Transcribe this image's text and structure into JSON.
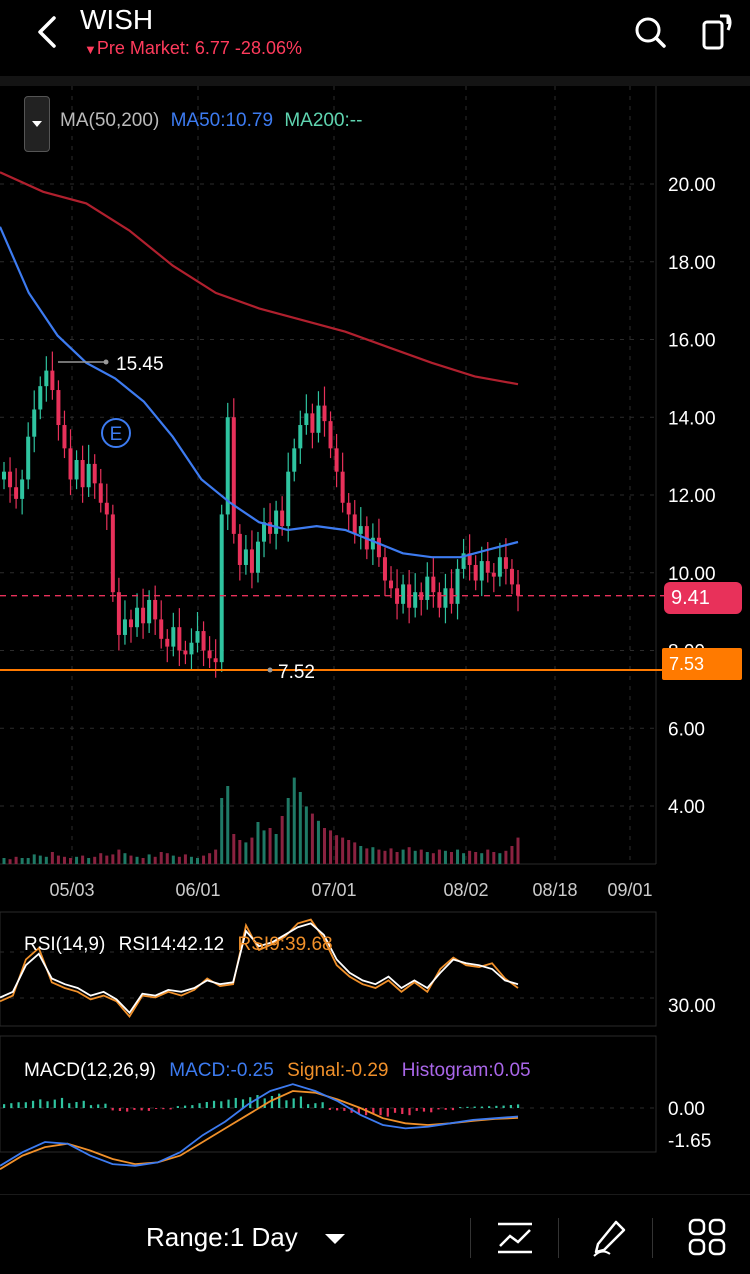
{
  "header": {
    "symbol": "WISH",
    "premarket": "Pre Market: 6.77 -28.06%",
    "colors": {
      "down": "#ff3b5c"
    }
  },
  "ma_legend": {
    "label": "MA(50,200)",
    "ma50": "MA50:10.79",
    "ma200": "MA200:--"
  },
  "price_badges": {
    "last": "9.41",
    "low_line": "7.53"
  },
  "annotations": {
    "high": "15.45",
    "low": "7.52",
    "earnings": "E"
  },
  "rsi_panel": {
    "label": "RSI(14,9)",
    "rsi14": "RSI14:42.12",
    "rsi9": "RSI9:39.68",
    "axis_tick": "30.00"
  },
  "macd_panel": {
    "label": "MACD(12,26,9)",
    "macd": "MACD:-0.25",
    "signal": "Signal:-0.29",
    "histogram": "Histogram:0.05",
    "axis_ticks": [
      "0.00",
      "-1.65"
    ]
  },
  "bottom_bar": {
    "range": "Range:1 Day"
  },
  "chart_data": {
    "type": "candlestick",
    "y_ticks": [
      "20.00",
      "18.00",
      "16.00",
      "14.00",
      "12.00",
      "10.00",
      "8.00",
      "6.00",
      "4.00"
    ],
    "ylim": [
      3.5,
      21
    ],
    "x_ticks": [
      "05/03",
      "06/01",
      "07/01",
      "08/02",
      "08/18",
      "09/01"
    ],
    "last_price": 9.41,
    "support_price": 7.53,
    "period_high": 15.45,
    "period_low": 7.52,
    "closes": [
      12.6,
      12.2,
      11.9,
      12.4,
      13.5,
      14.2,
      14.8,
      15.2,
      14.7,
      13.8,
      13.2,
      12.4,
      12.9,
      12.2,
      12.8,
      12.3,
      11.8,
      11.5,
      9.5,
      8.4,
      8.8,
      8.6,
      9.1,
      8.7,
      9.3,
      8.8,
      8.3,
      8.1,
      8.6,
      8.0,
      7.9,
      8.2,
      8.5,
      8.0,
      7.8,
      7.7,
      11.5,
      14.0,
      11.0,
      10.2,
      10.6,
      10.0,
      10.8,
      11.3,
      11.0,
      11.6,
      11.2,
      12.6,
      13.2,
      13.8,
      14.1,
      13.6,
      14.3,
      13.9,
      13.2,
      12.6,
      11.8,
      11.5,
      11.0,
      11.2,
      10.6,
      10.9,
      10.4,
      9.8,
      9.6,
      9.2,
      9.7,
      9.1,
      9.5,
      9.3,
      9.9,
      9.5,
      9.1,
      9.6,
      9.2,
      10.1,
      10.5,
      10.2,
      9.8,
      10.3,
      10.0,
      9.9,
      10.4,
      10.1,
      9.7,
      9.41
    ],
    "ma50": [
      18.9,
      17.2,
      16.1,
      15.4,
      15.0,
      14.4,
      13.5,
      12.4,
      11.8,
      11.3,
      11.1,
      11.2,
      11.1,
      10.8,
      10.5,
      10.4,
      10.4,
      10.6,
      10.79
    ],
    "ma200": [
      20.3,
      19.8,
      19.5,
      18.8,
      17.9,
      17.2,
      16.8,
      16.5,
      16.2,
      15.8,
      15.4,
      15.05,
      14.85
    ],
    "volume": [
      0.05,
      0.04,
      0.06,
      0.05,
      0.05,
      0.08,
      0.07,
      0.06,
      0.1,
      0.07,
      0.06,
      0.05,
      0.06,
      0.07,
      0.05,
      0.06,
      0.09,
      0.07,
      0.08,
      0.12,
      0.09,
      0.07,
      0.06,
      0.05,
      0.08,
      0.06,
      0.1,
      0.09,
      0.07,
      0.06,
      0.08,
      0.06,
      0.05,
      0.07,
      0.09,
      0.12,
      0.55,
      0.65,
      0.25,
      0.2,
      0.18,
      0.22,
      0.35,
      0.28,
      0.3,
      0.25,
      0.4,
      0.55,
      0.72,
      0.6,
      0.48,
      0.42,
      0.36,
      0.3,
      0.28,
      0.24,
      0.22,
      0.2,
      0.18,
      0.15,
      0.13,
      0.14,
      0.12,
      0.11,
      0.13,
      0.1,
      0.12,
      0.14,
      0.11,
      0.12,
      0.1,
      0.09,
      0.12,
      0.11,
      0.1,
      0.12,
      0.09,
      0.11,
      0.1,
      0.09,
      0.12,
      0.1,
      0.09,
      0.11,
      0.15,
      0.22
    ],
    "rsi": {
      "ylim": [
        20,
        80
      ],
      "rsi14": [
        35,
        38,
        52,
        58,
        45,
        42,
        40,
        36,
        38,
        34,
        27,
        37,
        36,
        39,
        38,
        40,
        44,
        42,
        43,
        70,
        62,
        64,
        68,
        72,
        74,
        68,
        55,
        48,
        44,
        42,
        46,
        40,
        44,
        40,
        48,
        55,
        53,
        52,
        50,
        44,
        42
      ],
      "rsi9": [
        33,
        36,
        55,
        61,
        43,
        40,
        38,
        34,
        36,
        33,
        25,
        36,
        35,
        38,
        36,
        39,
        45,
        41,
        42,
        73,
        60,
        63,
        67,
        74,
        76,
        66,
        52,
        46,
        42,
        40,
        44,
        38,
        43,
        38,
        50,
        56,
        52,
        51,
        53,
        45,
        40
      ]
    },
    "macd": {
      "zero_label": "0.00",
      "macd_line": [
        -1.7,
        -1.3,
        -1.0,
        -1.05,
        -1.4,
        -1.65,
        -1.7,
        -1.6,
        -1.3,
        -0.8,
        -0.4,
        0.1,
        0.5,
        0.7,
        0.5,
        0.2,
        -0.2,
        -0.5,
        -0.6,
        -0.55,
        -0.45,
        -0.35,
        -0.3,
        -0.25
      ],
      "signal_line": [
        -1.8,
        -1.4,
        -1.15,
        -1.05,
        -1.25,
        -1.5,
        -1.65,
        -1.6,
        -1.4,
        -1.0,
        -0.6,
        -0.2,
        0.2,
        0.5,
        0.45,
        0.25,
        0.0,
        -0.3,
        -0.45,
        -0.5,
        -0.45,
        -0.38,
        -0.32,
        -0.29
      ],
      "histogram": [
        0.08,
        0.12,
        0.14,
        0.1,
        0.06,
        -0.05,
        -0.04,
        -0.02,
        0.04,
        0.1,
        0.14,
        0.18,
        0.2,
        0.16,
        0.08,
        -0.04,
        -0.1,
        -0.12,
        -0.1,
        -0.06,
        -0.03,
        0.02,
        0.03,
        0.05
      ]
    }
  }
}
